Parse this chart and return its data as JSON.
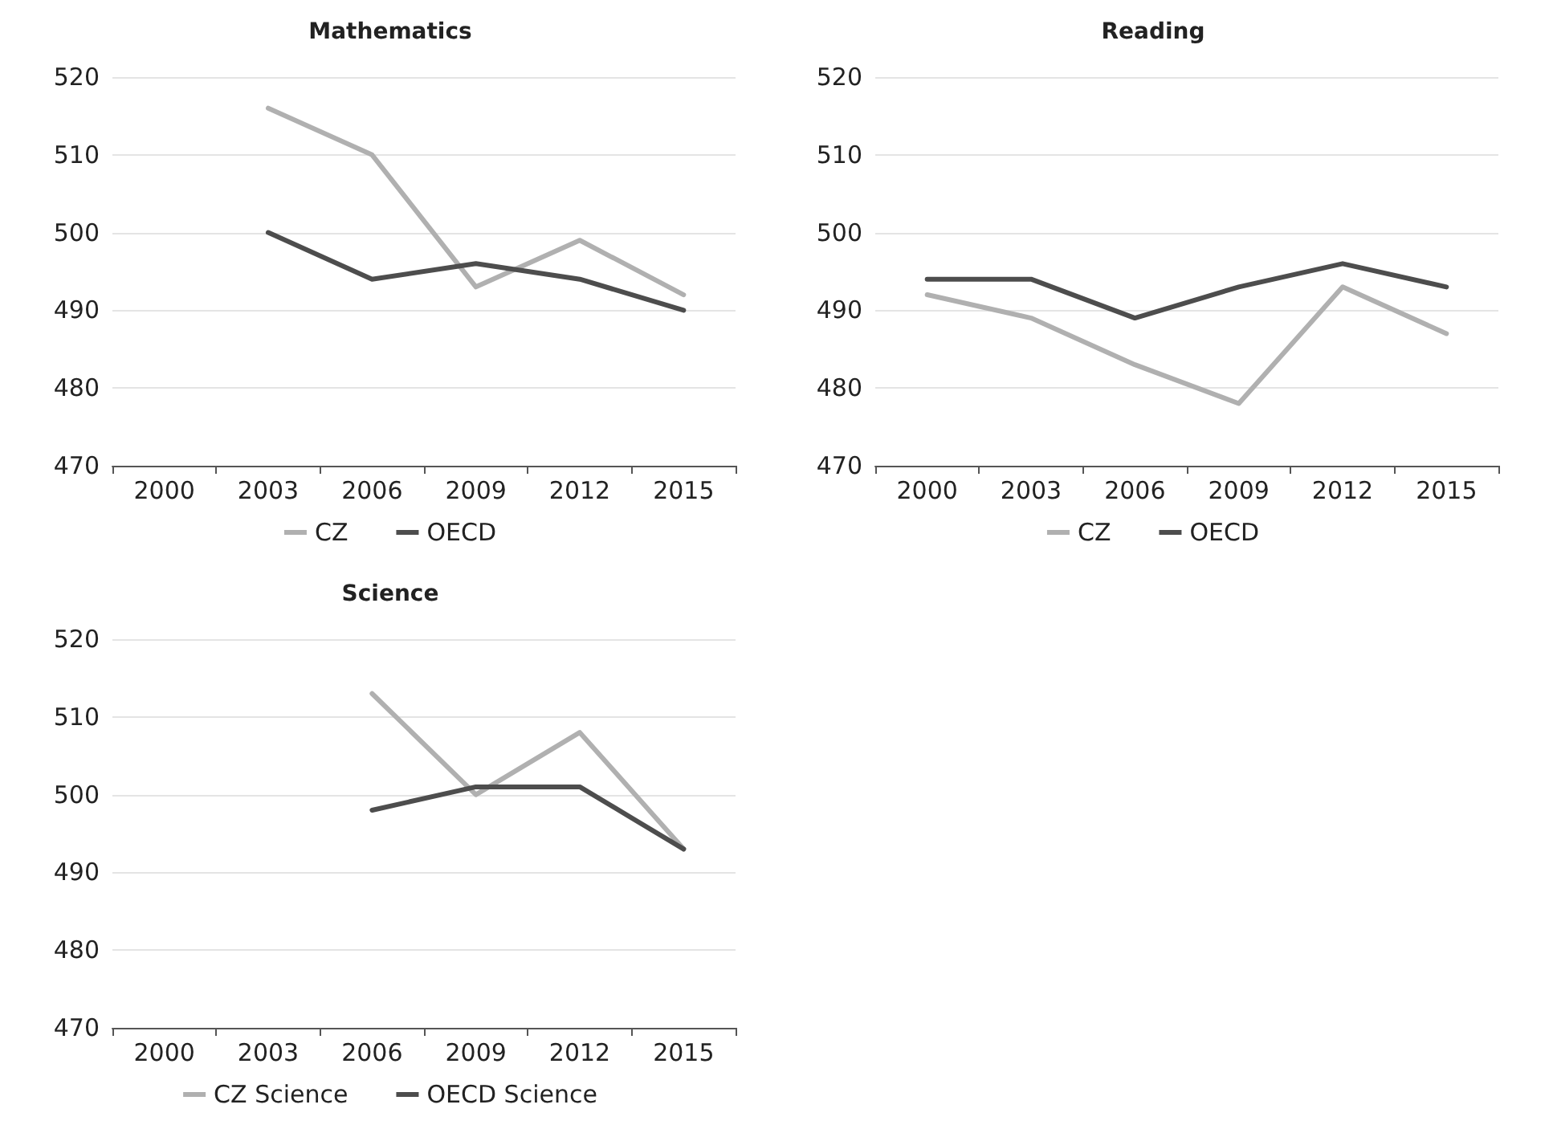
{
  "chart_data": [
    {
      "type": "line",
      "title": "Mathematics",
      "categories": [
        "2000",
        "2003",
        "2006",
        "2009",
        "2012",
        "2015"
      ],
      "ylim": [
        470,
        520
      ],
      "yticks": [
        470,
        480,
        490,
        500,
        510,
        520
      ],
      "grid": "y",
      "legend": "bottom",
      "marker": "none",
      "series": [
        {
          "name": "CZ",
          "color": "#b0b0b0",
          "values": [
            null,
            516,
            510,
            493,
            499,
            492
          ]
        },
        {
          "name": "OECD",
          "color": "#4d4d4d",
          "values": [
            null,
            500,
            494,
            496,
            494,
            490
          ]
        }
      ]
    },
    {
      "type": "line",
      "title": "Reading",
      "categories": [
        "2000",
        "2003",
        "2006",
        "2009",
        "2012",
        "2015"
      ],
      "ylim": [
        470,
        520
      ],
      "yticks": [
        470,
        480,
        490,
        500,
        510,
        520
      ],
      "grid": "y",
      "legend": "bottom",
      "marker": "none",
      "series": [
        {
          "name": "CZ",
          "color": "#b0b0b0",
          "values": [
            492,
            489,
            483,
            478,
            493,
            487
          ]
        },
        {
          "name": "OECD",
          "color": "#4d4d4d",
          "values": [
            494,
            494,
            489,
            493,
            496,
            493
          ]
        }
      ]
    },
    {
      "type": "line",
      "title": "Science",
      "categories": [
        "2000",
        "2003",
        "2006",
        "2009",
        "2012",
        "2015"
      ],
      "ylim": [
        470,
        520
      ],
      "yticks": [
        470,
        480,
        490,
        500,
        510,
        520
      ],
      "grid": "y",
      "legend": "bottom",
      "marker": "none",
      "series": [
        {
          "name": "CZ Science",
          "color": "#b0b0b0",
          "values": [
            null,
            null,
            513,
            500,
            508,
            493
          ]
        },
        {
          "name": "OECD Science",
          "color": "#4d4d4d",
          "values": [
            null,
            null,
            498,
            501,
            501,
            493
          ]
        }
      ]
    }
  ]
}
